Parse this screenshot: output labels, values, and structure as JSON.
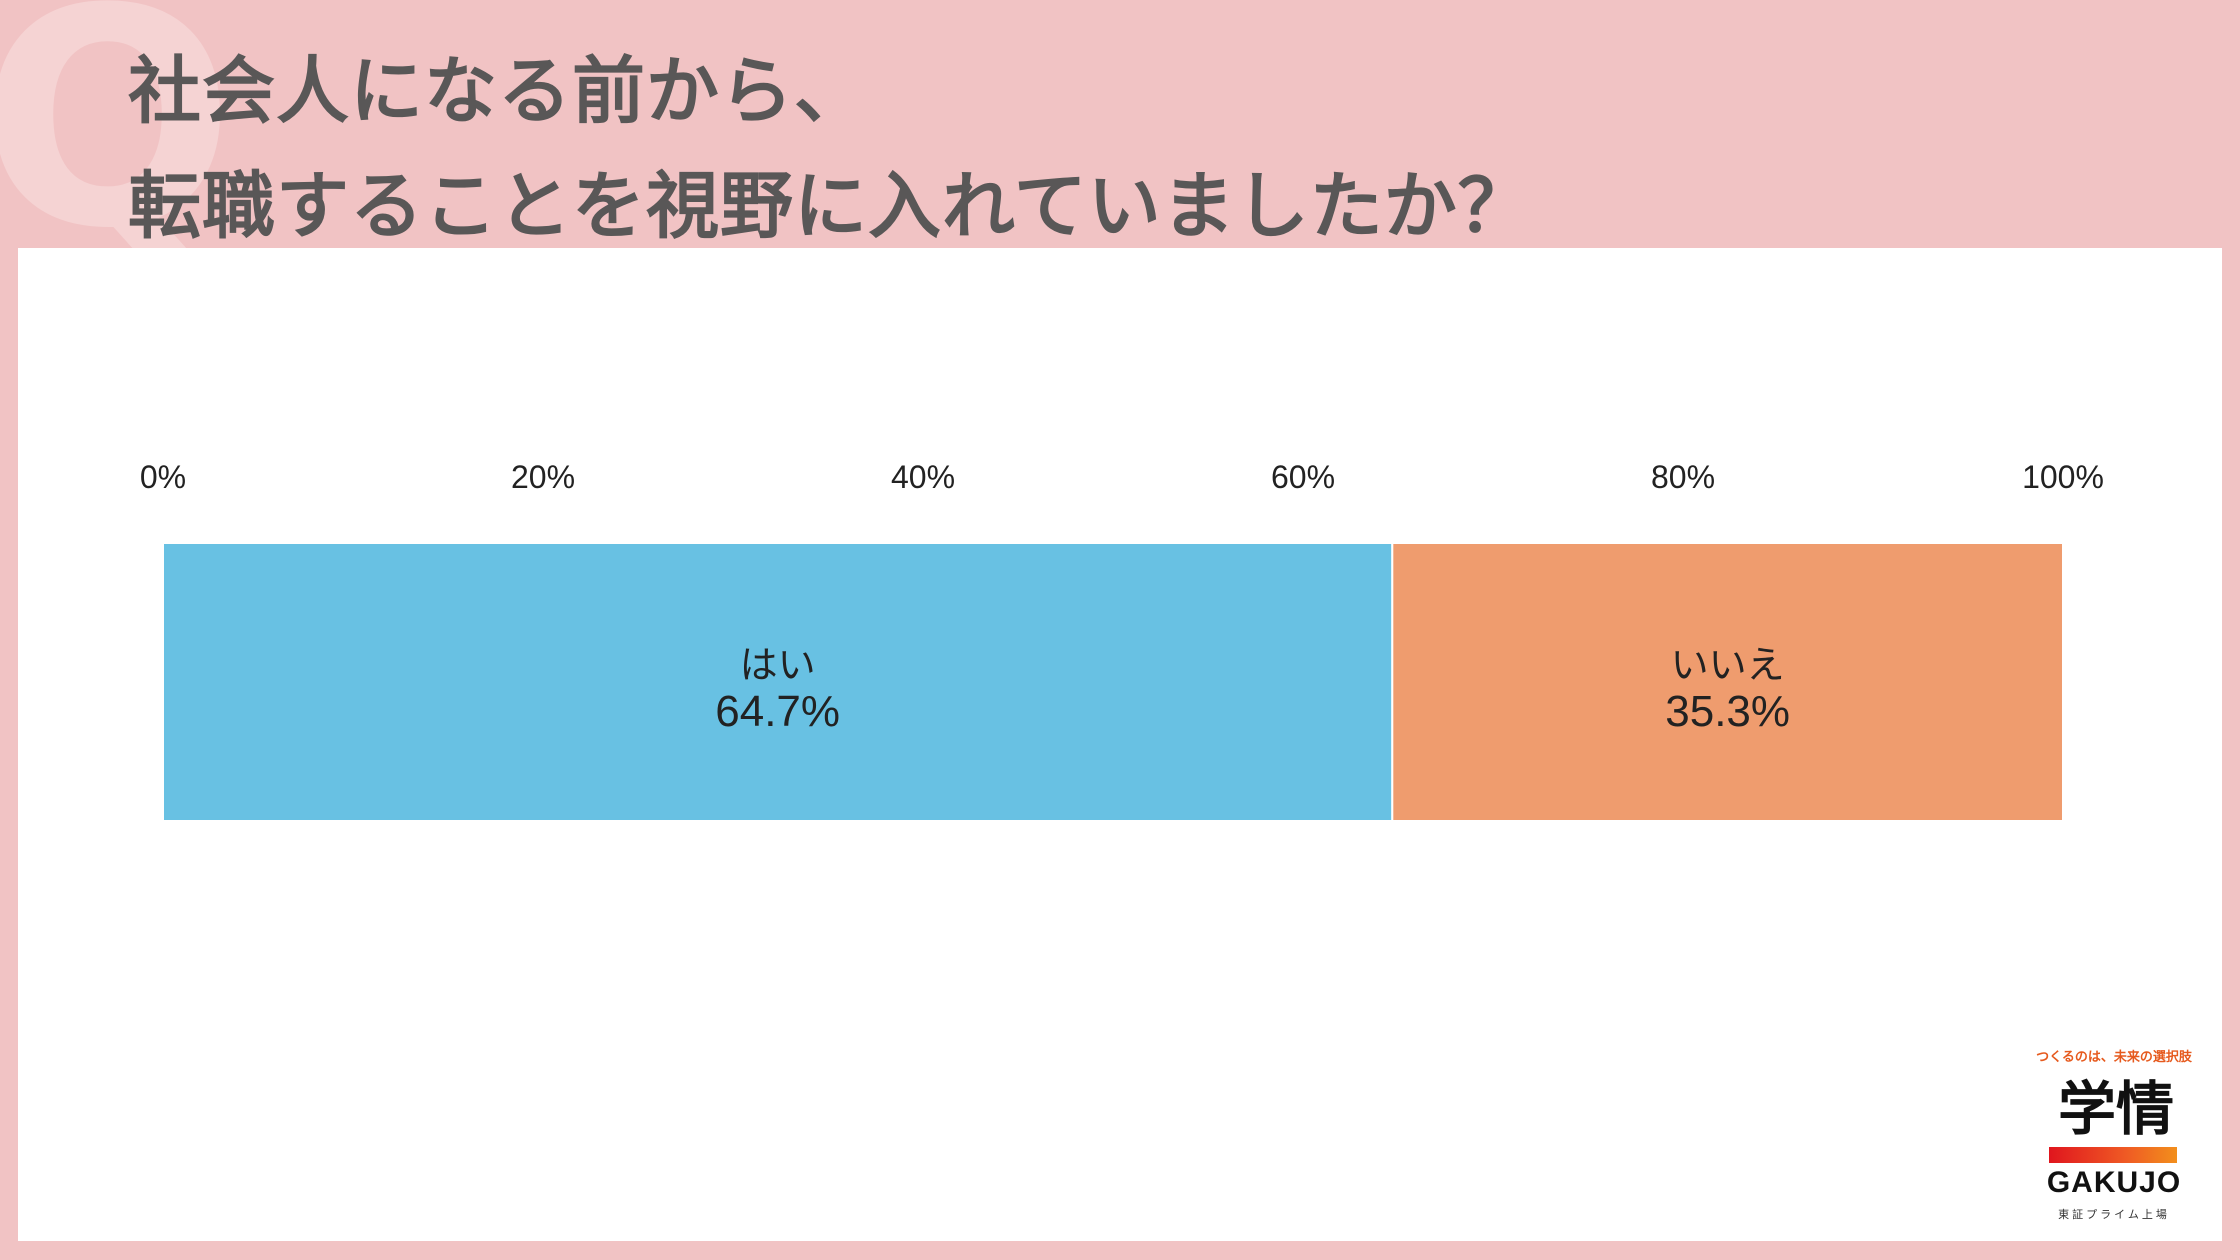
{
  "decor": {
    "q_letter": "Q"
  },
  "title": {
    "line1": "社会人になる前から、",
    "line2": "転職することを視野に入れていましたか？"
  },
  "colors": {
    "background": "#f1c3c4",
    "panel": "#ffffff",
    "title_text": "#595757",
    "yes": "#68c1e3",
    "no": "#ef9c6e"
  },
  "chart_data": {
    "type": "bar",
    "orientation": "horizontal-stacked-100",
    "xlim": [
      0,
      100
    ],
    "ticks": [
      "0%",
      "20%",
      "40%",
      "60%",
      "80%",
      "100%"
    ],
    "tick_values": [
      0,
      20,
      40,
      60,
      80,
      100
    ],
    "grid": false,
    "series": [
      {
        "name": "はい",
        "value": 64.7,
        "label": "64.7%",
        "color": "#68c1e3"
      },
      {
        "name": "いいえ",
        "value": 35.3,
        "label": "35.3%",
        "color": "#ef9c6e"
      }
    ]
  },
  "logo": {
    "tagline": "つくるのは、未来の選択肢",
    "kanji": "学情",
    "english": "GAKUJO",
    "subtitle": "東証プライム上場"
  }
}
